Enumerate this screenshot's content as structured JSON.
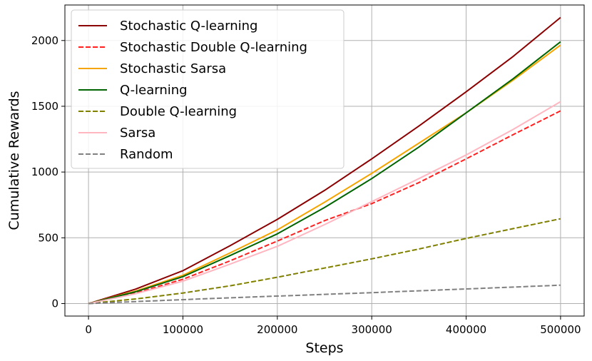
{
  "chart_data": {
    "type": "line",
    "xlabel": "Steps",
    "ylabel": "Cumulative Rewards",
    "xlim": [
      -25000,
      525000
    ],
    "ylim": [
      -95,
      2270
    ],
    "xticks": [
      0,
      100000,
      200000,
      300000,
      400000,
      500000
    ],
    "yticks": [
      0,
      500,
      1000,
      1500,
      2000
    ],
    "grid": true,
    "legend_position": "top-left",
    "series": [
      {
        "name": "Stochastic Q-learning",
        "color": "#8b0000",
        "dash": "solid",
        "x": [
          0,
          50000,
          100000,
          150000,
          200000,
          250000,
          300000,
          350000,
          400000,
          450000,
          500000
        ],
        "y": [
          0,
          110,
          250,
          440,
          640,
          860,
          1100,
          1350,
          1610,
          1880,
          2175
        ]
      },
      {
        "name": "Stochastic Double Q-learning",
        "color": "#ff2020",
        "dash": "dashed",
        "x": [
          0,
          50000,
          100000,
          150000,
          200000,
          250000,
          300000,
          350000,
          400000,
          450000,
          500000
        ],
        "y": [
          0,
          80,
          185,
          325,
          475,
          630,
          760,
          920,
          1100,
          1285,
          1465
        ]
      },
      {
        "name": "Stochastic Sarsa",
        "color": "#f5a500",
        "dash": "solid",
        "x": [
          0,
          50000,
          100000,
          150000,
          200000,
          250000,
          300000,
          350000,
          400000,
          450000,
          500000
        ],
        "y": [
          0,
          95,
          215,
          385,
          560,
          770,
          990,
          1220,
          1450,
          1700,
          1965
        ]
      },
      {
        "name": "Q-learning",
        "color": "#006400",
        "dash": "solid",
        "x": [
          0,
          50000,
          100000,
          150000,
          200000,
          250000,
          300000,
          350000,
          400000,
          450000,
          500000
        ],
        "y": [
          0,
          90,
          205,
          365,
          530,
          730,
          950,
          1190,
          1450,
          1710,
          1990
        ]
      },
      {
        "name": "Double Q-learning",
        "color": "#808000",
        "dash": "dashed",
        "x": [
          0,
          50000,
          100000,
          150000,
          200000,
          250000,
          300000,
          350000,
          400000,
          450000,
          500000
        ],
        "y": [
          0,
          35,
          80,
          135,
          200,
          270,
          340,
          415,
          495,
          570,
          645
        ]
      },
      {
        "name": "Sarsa",
        "color": "#ffb6c1",
        "dash": "solid",
        "x": [
          0,
          50000,
          100000,
          150000,
          200000,
          250000,
          300000,
          350000,
          400000,
          450000,
          500000
        ],
        "y": [
          0,
          75,
          170,
          300,
          435,
          600,
          775,
          950,
          1130,
          1325,
          1535
        ]
      },
      {
        "name": "Random",
        "color": "#808080",
        "dash": "dashed",
        "x": [
          0,
          50000,
          100000,
          150000,
          200000,
          250000,
          300000,
          350000,
          400000,
          450000,
          500000
        ],
        "y": [
          0,
          15,
          30,
          44,
          57,
          70,
          83,
          97,
          111,
          125,
          140
        ]
      }
    ]
  }
}
